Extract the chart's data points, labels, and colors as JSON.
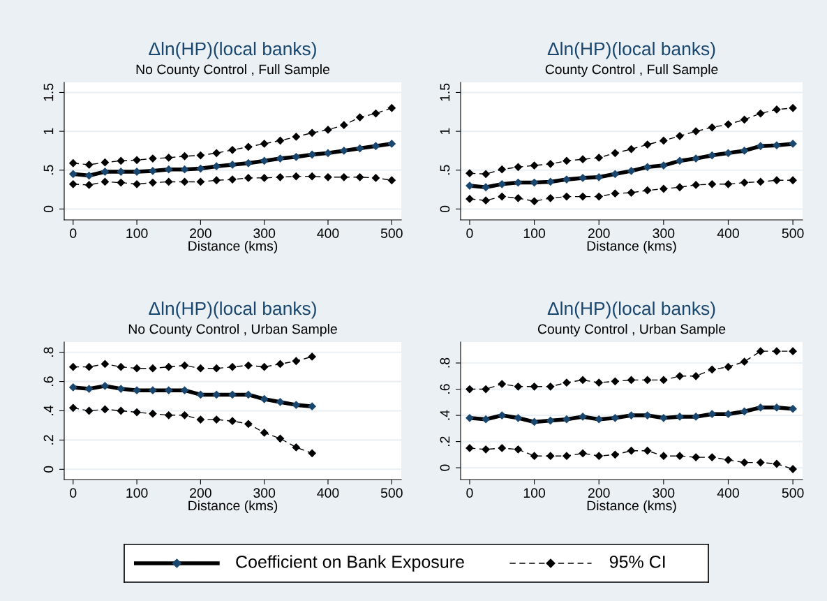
{
  "chart_data": [
    {
      "type": "line",
      "title": "Δln(HP)(local banks)",
      "subtitle": "No County Control , Full Sample",
      "xlabel": "Distance (kms)",
      "x": [
        0,
        25,
        50,
        75,
        100,
        125,
        150,
        175,
        200,
        225,
        250,
        275,
        300,
        325,
        350,
        375,
        400,
        425,
        450,
        475,
        500
      ],
      "xlim": [
        -14,
        515
      ],
      "xticks": [
        0,
        100,
        200,
        300,
        400,
        500
      ],
      "ylim": [
        -0.14,
        1.63
      ],
      "yticks": [
        0,
        {
          "value": 0.5,
          "label": ".5"
        },
        1,
        1.5
      ],
      "grid": "y",
      "marker": "diamond",
      "legend": "bottom",
      "series": [
        {
          "name": "Coefficient on Bank Exposure",
          "color": "#000000",
          "line_style": "solid",
          "values": [
            0.45,
            0.43,
            0.48,
            0.48,
            0.48,
            0.49,
            0.51,
            0.51,
            0.52,
            0.55,
            0.57,
            0.59,
            0.62,
            0.65,
            0.67,
            0.7,
            0.72,
            0.75,
            0.78,
            0.81,
            0.84
          ]
        },
        {
          "name": "95% CI",
          "color": "#000000",
          "line_style": "dashed",
          "values": [
            0.59,
            0.57,
            0.6,
            0.62,
            0.63,
            0.65,
            0.66,
            0.68,
            0.69,
            0.72,
            0.76,
            0.8,
            0.84,
            0.88,
            0.93,
            0.98,
            1.02,
            1.08,
            1.18,
            1.23,
            1.3
          ]
        },
        {
          "color": "#000000",
          "line_style": "dashed",
          "values": [
            0.32,
            0.31,
            0.35,
            0.34,
            0.32,
            0.34,
            0.35,
            0.35,
            0.35,
            0.37,
            0.38,
            0.4,
            0.4,
            0.41,
            0.42,
            0.42,
            0.41,
            0.41,
            0.41,
            0.4,
            0.37
          ]
        }
      ]
    },
    {
      "type": "line",
      "title": "Δln(HP)(local banks)",
      "subtitle": "County Control , Full Sample",
      "xlabel": "Distance (kms)",
      "x": [
        0,
        25,
        50,
        75,
        100,
        125,
        150,
        175,
        200,
        225,
        250,
        275,
        300,
        325,
        350,
        375,
        400,
        425,
        450,
        475,
        500
      ],
      "xlim": [
        -14,
        515
      ],
      "xticks": [
        0,
        100,
        200,
        300,
        400,
        500
      ],
      "ylim": [
        -0.14,
        1.63
      ],
      "yticks": [
        0,
        {
          "value": 0.5,
          "label": ".5"
        },
        1,
        1.5
      ],
      "grid": "y",
      "marker": "diamond",
      "series": [
        {
          "color": "#000000",
          "line_style": "solid",
          "values": [
            0.3,
            0.28,
            0.32,
            0.34,
            0.34,
            0.35,
            0.38,
            0.4,
            0.41,
            0.45,
            0.49,
            0.54,
            0.56,
            0.62,
            0.65,
            0.69,
            0.72,
            0.75,
            0.81,
            0.82,
            0.84
          ]
        },
        {
          "color": "#000000",
          "line_style": "dashed",
          "values": [
            0.46,
            0.45,
            0.51,
            0.54,
            0.56,
            0.58,
            0.62,
            0.64,
            0.66,
            0.72,
            0.77,
            0.83,
            0.88,
            0.94,
            1.0,
            1.05,
            1.09,
            1.15,
            1.23,
            1.28,
            1.3
          ]
        },
        {
          "color": "#000000",
          "line_style": "dashed",
          "values": [
            0.13,
            0.11,
            0.16,
            0.14,
            0.1,
            0.14,
            0.16,
            0.16,
            0.16,
            0.2,
            0.21,
            0.24,
            0.26,
            0.28,
            0.31,
            0.32,
            0.32,
            0.34,
            0.35,
            0.37,
            0.37
          ]
        }
      ]
    },
    {
      "type": "line",
      "title": "Δln(HP)(local banks)",
      "subtitle": "No County Control , Urban Sample",
      "xlabel": "Distance (kms)",
      "x": [
        0,
        25,
        50,
        75,
        100,
        125,
        150,
        175,
        200,
        225,
        250,
        275,
        300,
        325,
        350,
        375
      ],
      "xlim": [
        -14,
        515
      ],
      "xticks": [
        0,
        100,
        200,
        300,
        400,
        500
      ],
      "ylim": [
        -0.07,
        0.87
      ],
      "yticks": [
        0,
        {
          "value": 0.2,
          "label": ".2"
        },
        {
          "value": 0.4,
          "label": ".4"
        },
        {
          "value": 0.6,
          "label": ".6"
        },
        {
          "value": 0.8,
          "label": ".8"
        }
      ],
      "grid": "y",
      "marker": "diamond",
      "series": [
        {
          "color": "#000000",
          "line_style": "solid",
          "values": [
            0.56,
            0.55,
            0.57,
            0.55,
            0.54,
            0.54,
            0.54,
            0.54,
            0.51,
            0.51,
            0.51,
            0.51,
            0.48,
            0.46,
            0.44,
            0.43
          ]
        },
        {
          "color": "#000000",
          "line_style": "dashed",
          "values": [
            0.7,
            0.7,
            0.72,
            0.7,
            0.69,
            0.69,
            0.7,
            0.71,
            0.69,
            0.69,
            0.7,
            0.71,
            0.7,
            0.72,
            0.74,
            0.77
          ]
        },
        {
          "color": "#000000",
          "line_style": "dashed",
          "values": [
            0.42,
            0.4,
            0.41,
            0.4,
            0.39,
            0.38,
            0.37,
            0.37,
            0.34,
            0.34,
            0.33,
            0.31,
            0.25,
            0.21,
            0.15,
            0.11
          ]
        }
      ]
    },
    {
      "type": "line",
      "title": "Δln(HP)(local banks)",
      "subtitle": "County Control , Urban Sample",
      "xlabel": "Distance (kms)",
      "x": [
        0,
        25,
        50,
        75,
        100,
        125,
        150,
        175,
        200,
        225,
        250,
        275,
        300,
        325,
        350,
        375,
        400,
        425,
        450,
        475,
        500
      ],
      "xlim": [
        -14,
        515
      ],
      "xticks": [
        0,
        100,
        200,
        300,
        400,
        500
      ],
      "ylim": [
        -0.09,
        0.96
      ],
      "yticks": [
        0,
        {
          "value": 0.2,
          "label": ".2"
        },
        {
          "value": 0.4,
          "label": ".4"
        },
        {
          "value": 0.6,
          "label": ".6"
        },
        {
          "value": 0.8,
          "label": ".8"
        }
      ],
      "grid": "y",
      "marker": "diamond",
      "series": [
        {
          "color": "#000000",
          "line_style": "solid",
          "values": [
            0.38,
            0.37,
            0.4,
            0.38,
            0.35,
            0.36,
            0.37,
            0.39,
            0.37,
            0.38,
            0.4,
            0.4,
            0.38,
            0.39,
            0.39,
            0.41,
            0.41,
            0.43,
            0.46,
            0.46,
            0.45
          ]
        },
        {
          "color": "#000000",
          "line_style": "dashed",
          "values": [
            0.6,
            0.6,
            0.64,
            0.62,
            0.62,
            0.62,
            0.65,
            0.67,
            0.65,
            0.66,
            0.67,
            0.67,
            0.67,
            0.7,
            0.7,
            0.75,
            0.77,
            0.81,
            0.89,
            0.89,
            0.89
          ]
        },
        {
          "color": "#000000",
          "line_style": "dashed",
          "values": [
            0.15,
            0.14,
            0.15,
            0.14,
            0.09,
            0.09,
            0.09,
            0.11,
            0.09,
            0.1,
            0.13,
            0.13,
            0.09,
            0.09,
            0.08,
            0.08,
            0.06,
            0.04,
            0.04,
            0.03,
            -0.01
          ]
        }
      ]
    }
  ]
}
